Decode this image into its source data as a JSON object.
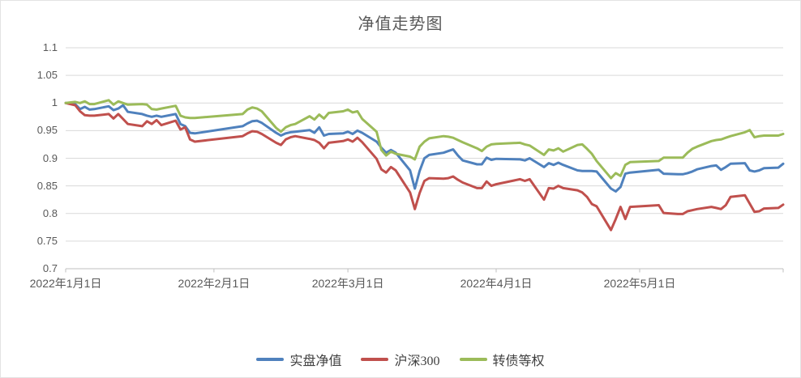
{
  "title": "净值走势图",
  "chart_data": {
    "type": "line",
    "title": "净值走势图",
    "xlabel": "",
    "ylabel": "",
    "ylim": [
      0.7,
      1.1
    ],
    "grid": "horizontal",
    "legend_position": "bottom",
    "x_unit": "days_since_2022-01-01",
    "x_tick_days": [
      0,
      31,
      59,
      90,
      120
    ],
    "x_tick_labels": [
      "2022年1月1日",
      "2022年2月1日",
      "2022年3月1日",
      "2022年4月1日",
      "2022年5月1日"
    ],
    "x_axis_end_day": 150,
    "y_ticks": [
      1.1,
      1.05,
      1,
      0.95,
      0.9,
      0.85,
      0.8,
      0.75,
      0.7
    ],
    "y_tick_labels": [
      "1.1",
      "1.05",
      "1",
      "0.95",
      "0.9",
      "0.85",
      "0.8",
      "0.75",
      "0.7"
    ],
    "days": [
      0,
      2,
      3,
      4,
      5,
      6,
      9,
      10,
      11,
      12,
      13,
      16,
      17,
      18,
      19,
      20,
      23,
      24,
      25,
      26,
      27,
      37,
      38,
      39,
      40,
      41,
      44,
      45,
      46,
      47,
      48,
      51,
      52,
      53,
      54,
      55,
      58,
      59,
      60,
      61,
      62,
      65,
      66,
      67,
      68,
      69,
      72,
      73,
      74,
      75,
      76,
      79,
      80,
      81,
      82,
      83,
      86,
      87,
      88,
      89,
      90,
      95,
      96,
      97,
      100,
      101,
      102,
      103,
      104,
      107,
      108,
      109,
      110,
      111,
      114,
      115,
      116,
      117,
      118,
      124,
      125,
      128,
      129,
      130,
      131,
      132,
      135,
      136,
      137,
      138,
      139,
      142,
      143,
      144,
      145,
      146,
      149,
      150
    ],
    "series": [
      {
        "name": "实盘净值",
        "color": "#4F81BD",
        "values": [
          1.0,
          0.998,
          0.989,
          0.993,
          0.988,
          0.989,
          0.994,
          0.987,
          0.99,
          0.996,
          0.984,
          0.98,
          0.977,
          0.975,
          0.977,
          0.975,
          0.98,
          0.962,
          0.958,
          0.946,
          0.945,
          0.958,
          0.963,
          0.967,
          0.968,
          0.964,
          0.946,
          0.941,
          0.945,
          0.947,
          0.948,
          0.951,
          0.946,
          0.956,
          0.941,
          0.944,
          0.945,
          0.948,
          0.944,
          0.95,
          0.946,
          0.93,
          0.919,
          0.91,
          0.915,
          0.91,
          0.878,
          0.845,
          0.877,
          0.9,
          0.906,
          0.91,
          0.913,
          0.916,
          0.905,
          0.896,
          0.889,
          0.889,
          0.901,
          0.897,
          0.899,
          0.898,
          0.896,
          0.9,
          0.884,
          0.891,
          0.888,
          0.892,
          0.888,
          0.878,
          0.877,
          0.877,
          0.877,
          0.876,
          0.845,
          0.84,
          0.848,
          0.872,
          0.874,
          0.879,
          0.872,
          0.871,
          0.871,
          0.873,
          0.876,
          0.88,
          0.886,
          0.887,
          0.879,
          0.884,
          0.89,
          0.891,
          0.878,
          0.876,
          0.878,
          0.882,
          0.883,
          0.89
        ]
      },
      {
        "name": "沪深300",
        "color": "#C0504D",
        "values": [
          1.0,
          0.996,
          0.985,
          0.978,
          0.977,
          0.977,
          0.98,
          0.972,
          0.98,
          0.971,
          0.962,
          0.958,
          0.967,
          0.962,
          0.969,
          0.96,
          0.968,
          0.952,
          0.956,
          0.934,
          0.93,
          0.94,
          0.945,
          0.949,
          0.948,
          0.944,
          0.928,
          0.924,
          0.934,
          0.938,
          0.94,
          0.935,
          0.933,
          0.928,
          0.918,
          0.928,
          0.931,
          0.934,
          0.93,
          0.937,
          0.929,
          0.899,
          0.88,
          0.874,
          0.884,
          0.878,
          0.838,
          0.808,
          0.837,
          0.859,
          0.864,
          0.863,
          0.864,
          0.867,
          0.861,
          0.856,
          0.846,
          0.846,
          0.858,
          0.85,
          0.853,
          0.862,
          0.859,
          0.862,
          0.825,
          0.846,
          0.845,
          0.85,
          0.846,
          0.842,
          0.838,
          0.83,
          0.817,
          0.813,
          0.77,
          0.79,
          0.812,
          0.79,
          0.812,
          0.815,
          0.801,
          0.799,
          0.799,
          0.804,
          0.806,
          0.808,
          0.812,
          0.81,
          0.808,
          0.815,
          0.83,
          0.833,
          0.818,
          0.803,
          0.804,
          0.809,
          0.81,
          0.816
        ]
      },
      {
        "name": "转债等权",
        "color": "#9BBB59",
        "values": [
          1.0,
          1.002,
          1.0,
          1.003,
          0.998,
          0.998,
          1.005,
          0.997,
          1.003,
          1.0,
          0.997,
          0.998,
          0.997,
          0.989,
          0.988,
          0.99,
          0.995,
          0.977,
          0.974,
          0.973,
          0.973,
          0.98,
          0.988,
          0.992,
          0.99,
          0.985,
          0.955,
          0.948,
          0.956,
          0.96,
          0.962,
          0.976,
          0.97,
          0.979,
          0.972,
          0.982,
          0.985,
          0.988,
          0.983,
          0.985,
          0.971,
          0.948,
          0.915,
          0.905,
          0.912,
          0.908,
          0.903,
          0.898,
          0.921,
          0.93,
          0.936,
          0.94,
          0.939,
          0.937,
          0.933,
          0.929,
          0.918,
          0.913,
          0.921,
          0.925,
          0.926,
          0.928,
          0.925,
          0.923,
          0.906,
          0.916,
          0.914,
          0.918,
          0.912,
          0.924,
          0.925,
          0.917,
          0.908,
          0.895,
          0.864,
          0.873,
          0.868,
          0.888,
          0.893,
          0.895,
          0.901,
          0.901,
          0.901,
          0.91,
          0.917,
          0.921,
          0.931,
          0.933,
          0.934,
          0.937,
          0.94,
          0.947,
          0.951,
          0.938,
          0.94,
          0.941,
          0.941,
          0.944
        ]
      }
    ],
    "colors": {
      "gridline": "#d9d9d9",
      "axis": "#bfbfbf",
      "tick_label": "#595959",
      "title": "#595959"
    }
  }
}
